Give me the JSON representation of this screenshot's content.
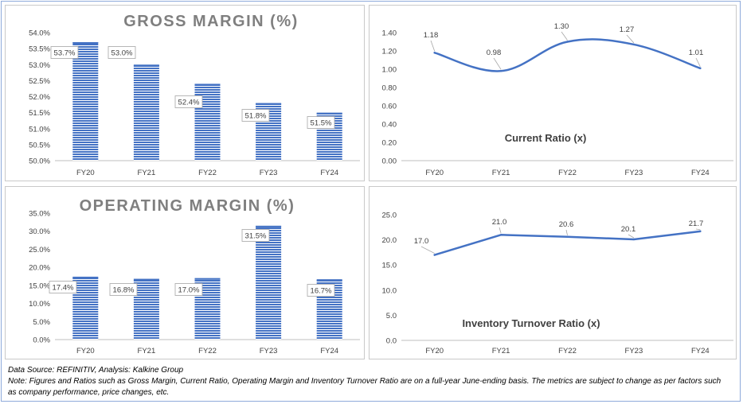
{
  "chart_data": [
    {
      "type": "bar",
      "title": "GROSS MARGIN (%)",
      "categories": [
        "FY20",
        "FY21",
        "FY22",
        "FY23",
        "FY24"
      ],
      "values": [
        53.7,
        53.0,
        52.4,
        51.8,
        51.5
      ],
      "data_labels": [
        "53.7%",
        "53.0%",
        "52.4%",
        "51.8%",
        "51.5%"
      ],
      "ylim": [
        50.0,
        54.0
      ],
      "yticks": [
        "50.0%",
        "50.5%",
        "51.0%",
        "51.5%",
        "52.0%",
        "52.5%",
        "53.0%",
        "53.5%",
        "54.0%"
      ],
      "grid": false,
      "bar_color": "#4472c4"
    },
    {
      "type": "line",
      "title": "Current Ratio (x)",
      "categories": [
        "FY20",
        "FY21",
        "FY22",
        "FY23",
        "FY24"
      ],
      "values": [
        1.18,
        0.98,
        1.3,
        1.27,
        1.01
      ],
      "data_labels": [
        "1.18",
        "0.98",
        "1.30",
        "1.27",
        "1.01"
      ],
      "ylim": [
        0.0,
        1.4
      ],
      "yticks": [
        "0.00",
        "0.20",
        "0.40",
        "0.60",
        "0.80",
        "1.00",
        "1.20",
        "1.40"
      ],
      "grid": false,
      "smooth": true,
      "line_color": "#4472c4"
    },
    {
      "type": "bar",
      "title": "OPERATING MARGIN (%)",
      "categories": [
        "FY20",
        "FY21",
        "FY22",
        "FY23",
        "FY24"
      ],
      "values": [
        17.4,
        16.8,
        17.0,
        31.5,
        16.7
      ],
      "data_labels": [
        "17.4%",
        "16.8%",
        "17.0%",
        "31.5%",
        "16.7%"
      ],
      "ylim": [
        0.0,
        35.0
      ],
      "yticks": [
        "0.0%",
        "5.0%",
        "10.0%",
        "15.0%",
        "20.0%",
        "25.0%",
        "30.0%",
        "35.0%"
      ],
      "grid": false,
      "bar_color": "#4472c4"
    },
    {
      "type": "line",
      "title": "Inventory Turnover Ratio (x)",
      "categories": [
        "FY20",
        "FY21",
        "FY22",
        "FY23",
        "FY24"
      ],
      "values": [
        17.0,
        21.0,
        20.6,
        20.1,
        21.7
      ],
      "data_labels": [
        "17.0",
        "21.0",
        "20.6",
        "20.1",
        "21.7"
      ],
      "ylim": [
        0.0,
        25.0
      ],
      "yticks": [
        "0.0",
        "5.0",
        "10.0",
        "15.0",
        "20.0",
        "25.0"
      ],
      "grid": false,
      "smooth": false,
      "line_color": "#4472c4"
    }
  ],
  "footer": {
    "source": "Data Source: REFINITIV, Analysis: Kalkine Group",
    "note": "Note: Figures and Ratios such as Gross Margin, Current Ratio, Operating Margin and Inventory Turnover Ratio are on a full-year June-ending basis. The metrics are subject to change as per factors such as company performance, price changes, etc."
  }
}
